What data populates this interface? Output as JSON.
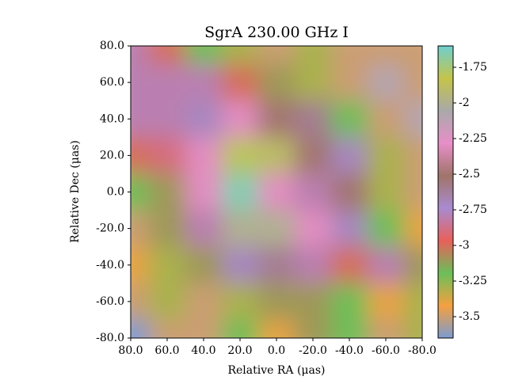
{
  "chart_data": {
    "type": "heatmap",
    "title": "SgrA 230.00 GHz I",
    "x_label": "Relative RA (μas)",
    "y_label": "Relative Dec (μas)",
    "x": [
      80,
      60,
      40,
      20,
      0,
      -20,
      -40,
      -60,
      -80
    ],
    "y": [
      80,
      60,
      40,
      20,
      0,
      -20,
      -40,
      -60,
      -80
    ],
    "z": [
      [
        -2.8,
        -3.0,
        -3.2,
        -3.3,
        -3.5,
        -3.3,
        -3.5,
        -3.5,
        -3.5
      ],
      [
        -2.8,
        -2.8,
        -2.8,
        -3.0,
        -3.1,
        -3.3,
        -3.5,
        -2.1,
        -3.5
      ],
      [
        -2.8,
        -2.8,
        -2.7,
        -2.3,
        -2.5,
        -2.6,
        -3.2,
        -3.5,
        -2.1
      ],
      [
        -3.0,
        -2.9,
        -2.3,
        -1.8,
        -1.9,
        -2.5,
        -2.7,
        -3.3,
        -3.5
      ],
      [
        -3.2,
        -3.1,
        -2.3,
        -1.65,
        -2.3,
        -2.8,
        -2.5,
        -3.3,
        -3.5
      ],
      [
        -3.5,
        -3.1,
        -2.8,
        -2.0,
        -2.0,
        -2.3,
        -2.7,
        -3.2,
        -3.4
      ],
      [
        -3.4,
        -3.3,
        -3.1,
        -2.7,
        -2.6,
        -2.8,
        -3.0,
        -2.8,
        -3.1
      ],
      [
        -3.5,
        -3.3,
        -3.5,
        -3.3,
        -3.1,
        -3.1,
        -3.2,
        -3.4,
        -3.3
      ],
      [
        -3.65,
        -3.5,
        -3.5,
        -3.2,
        -3.4,
        -3.1,
        -3.2,
        -3.5,
        -3.3
      ]
    ],
    "xlim": [
      80,
      -80
    ],
    "ylim": [
      -80,
      80
    ],
    "xticks": [
      {
        "value": 80,
        "label": "80.0"
      },
      {
        "value": 60,
        "label": "60.0"
      },
      {
        "value": 40,
        "label": "40.0"
      },
      {
        "value": 20,
        "label": "20.0"
      },
      {
        "value": 0,
        "label": "0.0"
      },
      {
        "value": -20,
        "label": "-20.0"
      },
      {
        "value": -40,
        "label": "-40.0"
      },
      {
        "value": -60,
        "label": "-60.0"
      },
      {
        "value": -80,
        "label": "-80.0"
      }
    ],
    "yticks": [
      {
        "value": 80,
        "label": "80.0"
      },
      {
        "value": 60,
        "label": "60.0"
      },
      {
        "value": 40,
        "label": "40.0"
      },
      {
        "value": 20,
        "label": "20.0"
      },
      {
        "value": 0,
        "label": "0.0"
      },
      {
        "value": -20,
        "label": "-20.0"
      },
      {
        "value": -40,
        "label": "-40.0"
      },
      {
        "value": -60,
        "label": "-60.0"
      },
      {
        "value": -80,
        "label": "-80.0"
      }
    ],
    "clim": [
      -3.65,
      -1.6
    ],
    "cticks": [
      -3.5,
      -3.25,
      -3.0,
      -2.75,
      -2.5,
      -2.25,
      -2.0,
      -1.75
    ],
    "colormap": [
      "#7b9bd1",
      "#f4a040",
      "#6bbf59",
      "#e8605a",
      "#a98bd0",
      "#a0746a",
      "#e78fc8",
      "#a9a9a9",
      "#c4c44a",
      "#6fcfcf"
    ]
  }
}
